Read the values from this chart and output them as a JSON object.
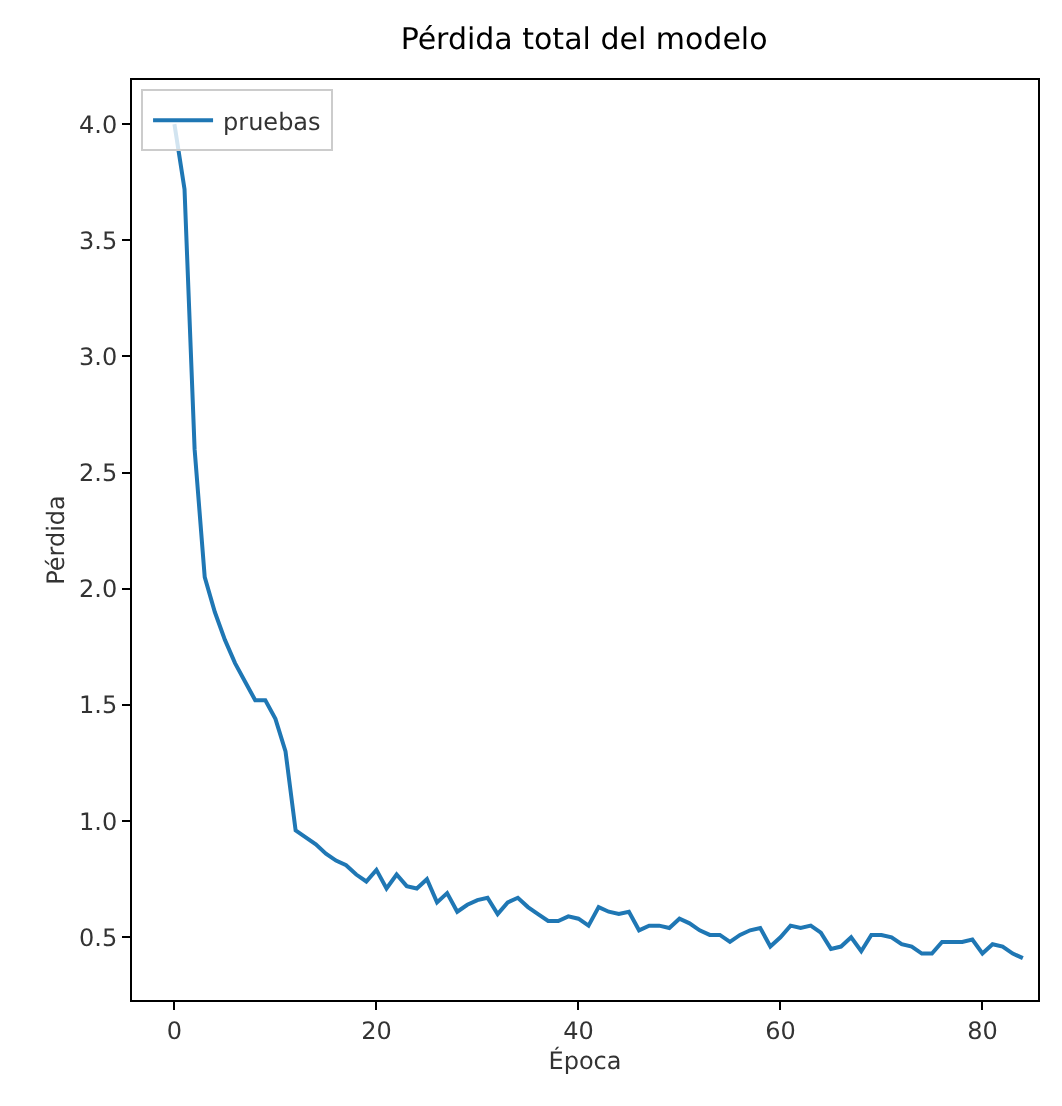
{
  "chart_data": {
    "type": "line",
    "title": "Pérdida total del modelo",
    "xlabel": "Época",
    "ylabel": "Pérdida",
    "x": [
      0,
      1,
      2,
      3,
      4,
      5,
      6,
      7,
      8,
      9,
      10,
      11,
      12,
      13,
      14,
      15,
      16,
      17,
      18,
      19,
      20,
      21,
      22,
      23,
      24,
      25,
      26,
      27,
      28,
      29,
      30,
      31,
      32,
      33,
      34,
      35,
      36,
      37,
      38,
      39,
      40,
      41,
      42,
      43,
      44,
      45,
      46,
      47,
      48,
      49,
      50,
      51,
      52,
      53,
      54,
      55,
      56,
      57,
      58,
      59,
      60,
      61,
      62,
      63,
      64,
      65,
      66,
      67,
      68,
      69,
      70,
      71,
      72,
      73,
      74,
      75,
      76,
      77,
      78,
      79,
      80,
      81,
      82,
      83,
      84
    ],
    "series": [
      {
        "name": "pruebas",
        "color": "#1f77b4",
        "values": [
          4.0,
          3.72,
          2.6,
          2.05,
          1.9,
          1.78,
          1.68,
          1.6,
          1.52,
          1.52,
          1.44,
          1.3,
          0.96,
          0.93,
          0.9,
          0.86,
          0.83,
          0.81,
          0.77,
          0.74,
          0.79,
          0.71,
          0.77,
          0.72,
          0.71,
          0.75,
          0.65,
          0.69,
          0.61,
          0.64,
          0.66,
          0.67,
          0.6,
          0.65,
          0.67,
          0.63,
          0.6,
          0.57,
          0.57,
          0.59,
          0.58,
          0.55,
          0.63,
          0.61,
          0.6,
          0.61,
          0.53,
          0.55,
          0.55,
          0.54,
          0.58,
          0.56,
          0.53,
          0.51,
          0.51,
          0.48,
          0.51,
          0.53,
          0.54,
          0.46,
          0.5,
          0.55,
          0.54,
          0.55,
          0.52,
          0.45,
          0.46,
          0.5,
          0.44,
          0.51,
          0.51,
          0.5,
          0.47,
          0.46,
          0.43,
          0.43,
          0.48,
          0.48,
          0.48,
          0.49,
          0.43,
          0.47,
          0.46,
          0.43,
          0.41
        ]
      }
    ],
    "xlim": [
      -4.2,
      85.5
    ],
    "ylim": [
      0.23,
      4.19
    ],
    "xticks": [
      0,
      20,
      40,
      60,
      80
    ],
    "yticks": [
      0.5,
      {
        "value": 1,
        "label": "1.0"
      },
      1.5,
      {
        "value": 2,
        "label": "2.0"
      },
      2.5,
      {
        "value": 3,
        "label": "3.0"
      },
      3.5,
      {
        "value": 4,
        "label": "4.0"
      }
    ],
    "legend": "top left",
    "marker": "none",
    "line_style": "solid"
  }
}
